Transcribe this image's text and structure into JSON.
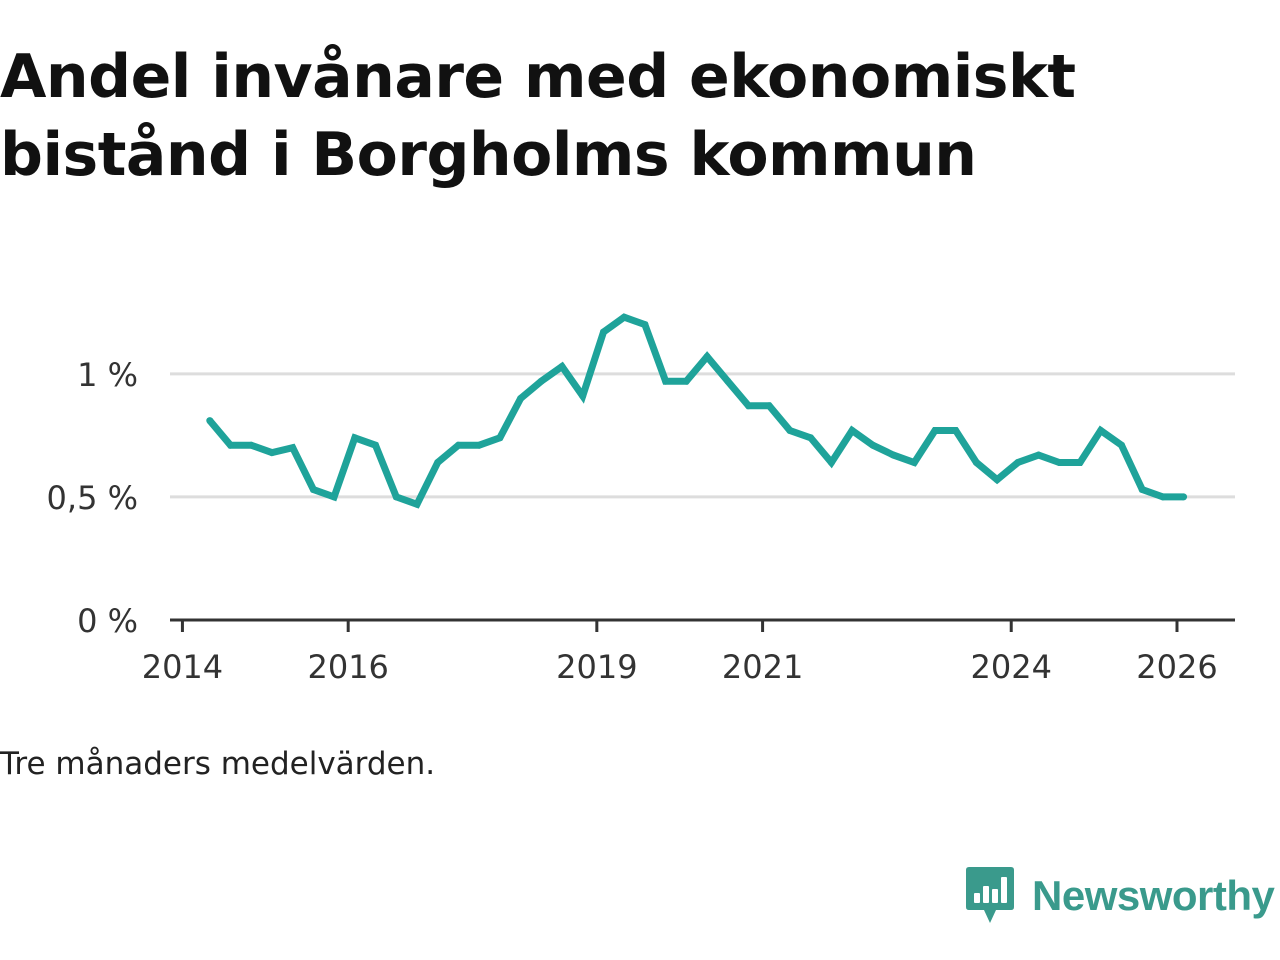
{
  "title": "Andel invånare med ekonomiskt bistånd i Borgholms kommun",
  "footnote": "Tre månaders medelvärden.",
  "brand": {
    "name": "Newsworthy",
    "color": "#3a9a8c",
    "icon": "bar-chart-speech-bubble-icon"
  },
  "chart_data": {
    "type": "line",
    "title": "Andel invånare med ekonomiskt bistånd i Borgholms kommun",
    "xlabel": "",
    "ylabel": "",
    "xlim": [
      2013.85,
      2026.7
    ],
    "ylim": [
      0,
      1.3
    ],
    "grid": true,
    "line_color": "#1fa39a",
    "y_ticks": [
      {
        "value": 0,
        "label": "0 %"
      },
      {
        "value": 0.5,
        "label": "0,5 %"
      },
      {
        "value": 1,
        "label": "1 %"
      }
    ],
    "x_ticks": [
      {
        "value": 2014,
        "label": "2014"
      },
      {
        "value": 2016,
        "label": "2016"
      },
      {
        "value": 2019,
        "label": "2019"
      },
      {
        "value": 2021,
        "label": "2021"
      },
      {
        "value": 2024,
        "label": "2024"
      },
      {
        "value": 2026,
        "label": "2026"
      }
    ],
    "series": [
      {
        "name": "Andel invånare med ekonomiskt bistånd",
        "x": [
          2014.33,
          2014.58,
          2014.83,
          2015.08,
          2015.33,
          2015.58,
          2015.83,
          2016.08,
          2016.33,
          2016.58,
          2016.83,
          2017.08,
          2017.33,
          2017.58,
          2017.83,
          2018.08,
          2018.33,
          2018.58,
          2018.83,
          2019.08,
          2019.33,
          2019.58,
          2019.83,
          2020.08,
          2020.33,
          2020.58,
          2020.83,
          2021.08,
          2021.33,
          2021.58,
          2021.83,
          2022.08,
          2022.33,
          2022.58,
          2022.83,
          2023.08,
          2023.33,
          2023.58,
          2023.83,
          2024.08,
          2024.33,
          2024.58,
          2024.83,
          2025.08,
          2025.33,
          2025.58,
          2025.83,
          2026.08
        ],
        "values": [
          0.81,
          0.71,
          0.71,
          0.68,
          0.7,
          0.53,
          0.5,
          0.74,
          0.71,
          0.5,
          0.47,
          0.64,
          0.71,
          0.71,
          0.74,
          0.9,
          0.97,
          1.03,
          0.91,
          1.17,
          1.23,
          1.2,
          0.97,
          0.97,
          1.07,
          0.97,
          0.87,
          0.87,
          0.77,
          0.74,
          0.64,
          0.77,
          0.71,
          0.67,
          0.64,
          0.77,
          0.77,
          0.64,
          0.57,
          0.64,
          0.67,
          0.64,
          0.64,
          0.77,
          0.71,
          0.53,
          0.5,
          0.5
        ]
      }
    ]
  }
}
